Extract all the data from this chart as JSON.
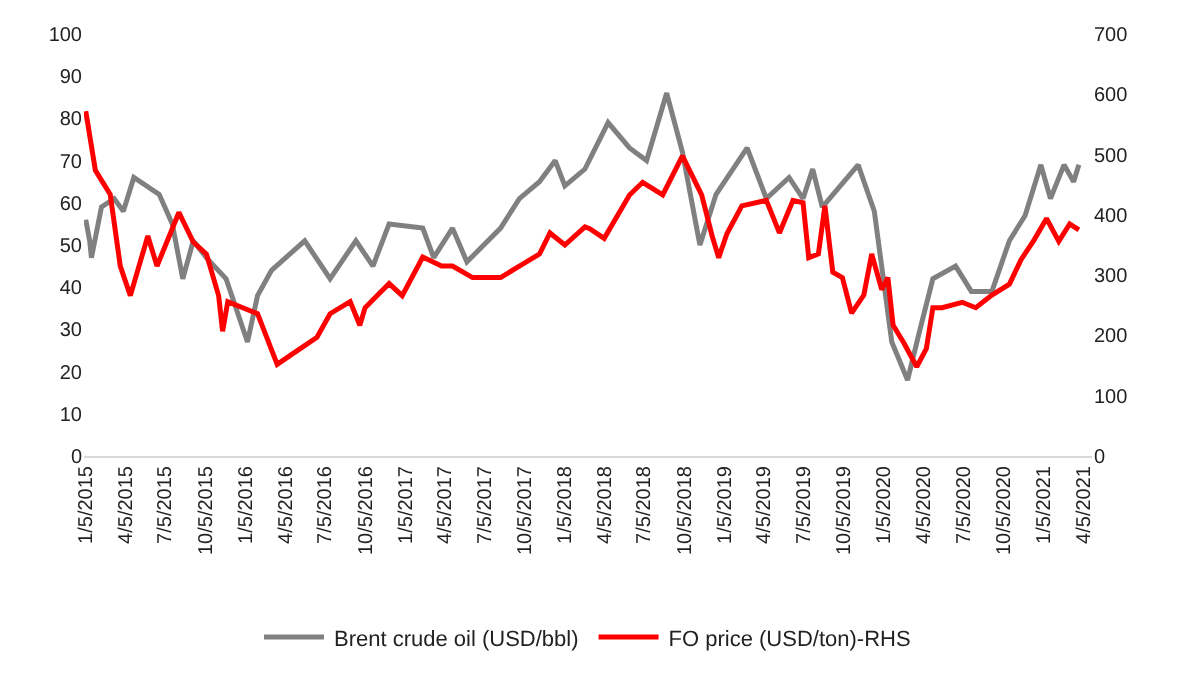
{
  "chart_data": {
    "type": "line",
    "xlim": [
      "2015-01-01",
      "2021-04-25"
    ],
    "xticks": [
      {
        "value": "2015-01-05",
        "label": "1/5/2015"
      },
      {
        "value": "2015-04-05",
        "label": "4/5/2015"
      },
      {
        "value": "2015-07-05",
        "label": "7/5/2015"
      },
      {
        "value": "2015-10-05",
        "label": "10/5/2015"
      },
      {
        "value": "2016-01-05",
        "label": "1/5/2016"
      },
      {
        "value": "2016-04-05",
        "label": "4/5/2016"
      },
      {
        "value": "2016-07-05",
        "label": "7/5/2016"
      },
      {
        "value": "2016-10-05",
        "label": "10/5/2016"
      },
      {
        "value": "2017-01-05",
        "label": "1/5/2017"
      },
      {
        "value": "2017-04-05",
        "label": "4/5/2017"
      },
      {
        "value": "2017-07-05",
        "label": "7/5/2017"
      },
      {
        "value": "2017-10-05",
        "label": "10/5/2017"
      },
      {
        "value": "2018-01-05",
        "label": "1/5/2018"
      },
      {
        "value": "2018-04-05",
        "label": "4/5/2018"
      },
      {
        "value": "2018-07-05",
        "label": "7/5/2018"
      },
      {
        "value": "2018-10-05",
        "label": "10/5/2018"
      },
      {
        "value": "2019-01-05",
        "label": "1/5/2019"
      },
      {
        "value": "2019-04-05",
        "label": "4/5/2019"
      },
      {
        "value": "2019-07-05",
        "label": "7/5/2019"
      },
      {
        "value": "2019-10-05",
        "label": "10/5/2019"
      },
      {
        "value": "2020-01-05",
        "label": "1/5/2020"
      },
      {
        "value": "2020-04-05",
        "label": "4/5/2020"
      },
      {
        "value": "2020-07-05",
        "label": "7/5/2020"
      },
      {
        "value": "2020-10-05",
        "label": "10/5/2020"
      },
      {
        "value": "2021-01-05",
        "label": "1/5/2021"
      },
      {
        "value": "2021-04-05",
        "label": "4/5/2021"
      }
    ],
    "ylim": [
      0,
      100
    ],
    "yticks": [
      0,
      10,
      20,
      30,
      40,
      50,
      60,
      70,
      80,
      90,
      100
    ],
    "y2lim": [
      0,
      700
    ],
    "y2ticks": [
      0,
      100,
      200,
      300,
      400,
      500,
      600,
      700
    ],
    "legend": "bottom",
    "marker": "none",
    "line_style": "solid",
    "series": [
      {
        "name": "Brent crude oil (USD/bbl)",
        "color": "#808080",
        "x": [
          "2015-01-05",
          "2015-01-14",
          "2015-01-18",
          "2015-02-10",
          "2015-03-11",
          "2015-04-01",
          "2015-04-25",
          "2015-06-22",
          "2015-07-22",
          "2015-08-15",
          "2015-09-08",
          "2015-10-08",
          "2015-11-22",
          "2016-01-10",
          "2016-02-02",
          "2016-03-05",
          "2016-05-20",
          "2016-07-17",
          "2016-09-14",
          "2016-10-23",
          "2016-11-29",
          "2017-02-14",
          "2017-03-11",
          "2017-04-23",
          "2017-05-26",
          "2017-08-11",
          "2017-09-23",
          "2017-11-08",
          "2017-12-14",
          "2018-01-05",
          "2018-02-20",
          "2018-04-14",
          "2018-06-02",
          "2018-07-11",
          "2018-08-26",
          "2018-10-01",
          "2018-11-10",
          "2018-12-17",
          "2019-02-26",
          "2019-04-11",
          "2019-06-02",
          "2019-07-04",
          "2019-07-26",
          "2019-08-17",
          "2019-11-07",
          "2019-12-14",
          "2020-01-23",
          "2020-02-28",
          "2020-03-30",
          "2020-04-26",
          "2020-06-17",
          "2020-07-23",
          "2020-09-08",
          "2020-10-18",
          "2020-11-23",
          "2020-12-29",
          "2021-01-20",
          "2021-02-20",
          "2021-03-14",
          "2021-03-26"
        ],
        "values": [
          56,
          51,
          47,
          59,
          61,
          58,
          66,
          62,
          55,
          42,
          51,
          47,
          42,
          27,
          38,
          44,
          51,
          42,
          51,
          45,
          55,
          54,
          47,
          54,
          46,
          54,
          61,
          65,
          70,
          64,
          68,
          79,
          73,
          70,
          86,
          72,
          50,
          62,
          73,
          61,
          66,
          61,
          68,
          59,
          69,
          58,
          27,
          18,
          31,
          42,
          45,
          39,
          39,
          51,
          57,
          69,
          61,
          69,
          65,
          69
        ]
      },
      {
        "name": "FO price (USD/ton)-RHS",
        "color": "#ff0000",
        "axis": "y2",
        "x": [
          "2015-01-05",
          "2015-01-27",
          "2015-03-02",
          "2015-03-25",
          "2015-04-17",
          "2015-05-27",
          "2015-06-17",
          "2015-08-06",
          "2015-09-08",
          "2015-10-08",
          "2015-11-05",
          "2015-11-14",
          "2015-11-26",
          "2016-02-02",
          "2016-03-18",
          "2016-04-17",
          "2016-06-17",
          "2016-07-17",
          "2016-09-01",
          "2016-09-23",
          "2016-10-05",
          "2016-11-29",
          "2016-12-29",
          "2017-02-14",
          "2017-03-29",
          "2017-04-23",
          "2017-06-08",
          "2017-08-11",
          "2017-09-23",
          "2017-11-08",
          "2017-12-02",
          "2018-01-05",
          "2018-02-20",
          "2018-03-03",
          "2018-04-05",
          "2018-06-02",
          "2018-07-02",
          "2018-08-17",
          "2018-10-01",
          "2018-11-14",
          "2018-12-08",
          "2018-12-23",
          "2019-01-11",
          "2019-02-14",
          "2019-04-11",
          "2019-05-11",
          "2019-06-11",
          "2019-07-04",
          "2019-07-17",
          "2019-08-08",
          "2019-08-23",
          "2019-09-10",
          "2019-10-02",
          "2019-10-23",
          "2019-11-20",
          "2019-12-08",
          "2019-12-31",
          "2020-01-14",
          "2020-01-26",
          "2020-02-20",
          "2020-03-20",
          "2020-04-11",
          "2020-04-26",
          "2020-05-17",
          "2020-07-02",
          "2020-08-02",
          "2020-09-08",
          "2020-10-18",
          "2020-11-14",
          "2020-12-14",
          "2021-01-11",
          "2021-02-08",
          "2021-03-05",
          "2021-03-26"
        ],
        "values": [
          572,
          474,
          434,
          315,
          266,
          365,
          315,
          404,
          355,
          335,
          266,
          207,
          256,
          236,
          152,
          167,
          197,
          236,
          256,
          217,
          246,
          286,
          266,
          330,
          315,
          315,
          296,
          296,
          315,
          335,
          370,
          350,
          380,
          377,
          361,
          433,
          454,
          433,
          498,
          433,
          365,
          329,
          369,
          415,
          424,
          370,
          424,
          420,
          329,
          335,
          415,
          305,
          296,
          237,
          267,
          335,
          276,
          296,
          217,
          187,
          148,
          178,
          246,
          246,
          255,
          246,
          267,
          285,
          326,
          359,
          394,
          356,
          385,
          375
        ]
      }
    ]
  }
}
